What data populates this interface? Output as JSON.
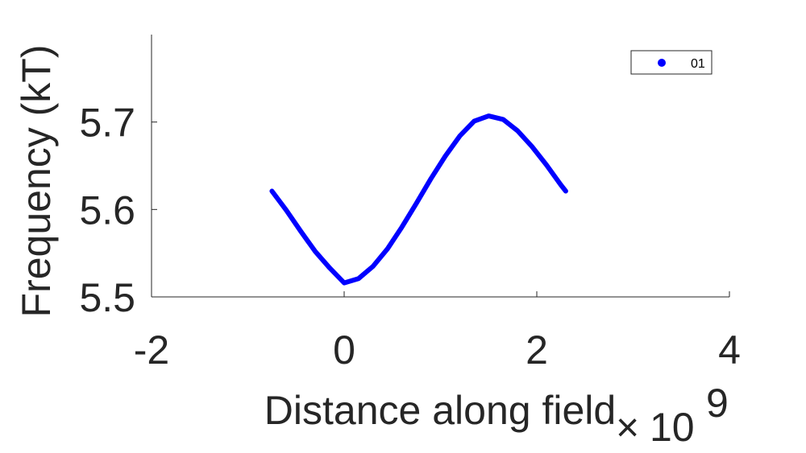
{
  "chart_data": {
    "type": "line",
    "xlabel": "Distance along field",
    "ylabel": "Frequency (kT)",
    "x_exponent_label": {
      "times": "×",
      "base": "10",
      "exponent": "9"
    },
    "xlim": [
      -2,
      4
    ],
    "ylim": [
      5.5,
      5.8
    ],
    "x_ticks": [
      -2,
      0,
      2,
      4
    ],
    "y_ticks": [
      5.5,
      5.6,
      5.7
    ],
    "x_tick_labels": [
      "-2",
      "0",
      "2",
      "4"
    ],
    "y_tick_labels": [
      "5.5",
      "5.6",
      "5.7"
    ],
    "legend_position": "top-right",
    "grid": false,
    "series": [
      {
        "name": "01",
        "color": "#0000ff",
        "x": [
          -0.75,
          -0.6,
          -0.45,
          -0.3,
          -0.15,
          0.0,
          0.15,
          0.3,
          0.45,
          0.6,
          0.75,
          0.9,
          1.05,
          1.2,
          1.35,
          1.5,
          1.65,
          1.8,
          1.95,
          2.1,
          2.25,
          2.3
        ],
        "y": [
          5.621,
          5.599,
          5.575,
          5.552,
          5.533,
          5.516,
          5.521,
          5.535,
          5.555,
          5.58,
          5.607,
          5.635,
          5.661,
          5.684,
          5.701,
          5.707,
          5.703,
          5.69,
          5.672,
          5.651,
          5.628,
          5.621
        ]
      }
    ]
  }
}
